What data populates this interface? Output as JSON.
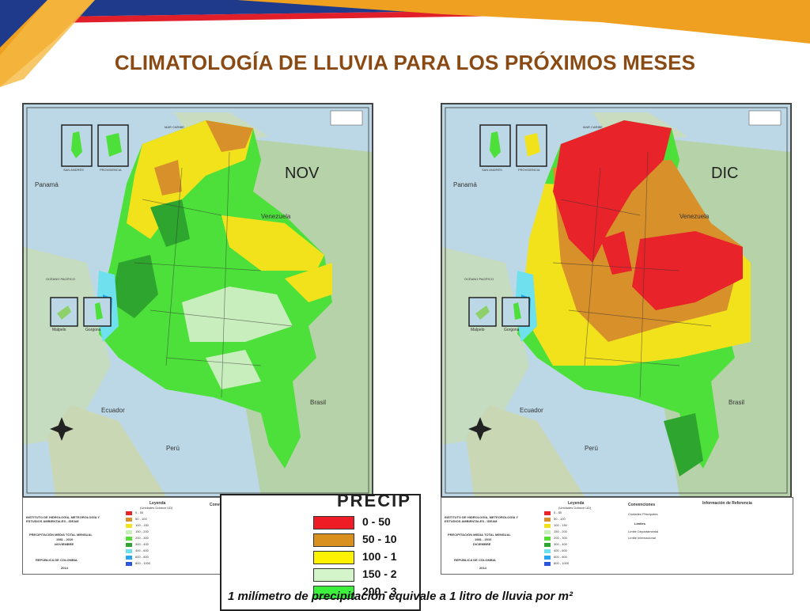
{
  "slide": {
    "title": "CLIMATOLOGÍA DE LLUVIA PARA LOS PRÓXIMOS MESES",
    "colors": {
      "title": "#8a4a14",
      "banner_blue": "#1f3a8a",
      "banner_orange": "#f0a020"
    }
  },
  "maps": [
    {
      "month": "NOV",
      "legend_title": "PRECIPITACIÓN MEDIA TOTAL MENSUAL",
      "period": "1981 - 2010",
      "month_name": "NOVIEMBRE",
      "year": "2014"
    },
    {
      "month": "DIC",
      "legend_title": "PRECIPITACIÓN MEDIA TOTAL MENSUAL",
      "period": "1981 - 2010",
      "month_name": "DICIEMBRE",
      "year": "2014"
    }
  ],
  "place_labels": {
    "venezuela": "Venezuela",
    "brasil": "Brasil",
    "peru": "Perú",
    "ecuador": "Ecuador",
    "panama": "Panamá",
    "san_andres": "SAN ANDRÉS",
    "providencia": "PROVIDENCIA",
    "malpelo": "Malpelo",
    "gorgona": "Gorgona",
    "mar_caribe": "MAR CARIBE",
    "oceano_pacifico": "OCÉANO PACÍFICO"
  },
  "small_legend": {
    "institute": "INSTITUTO DE HIDROLOGÍA, METEOROLOGÍA Y ESTUDIOS AMBIENTALES - IDEAM",
    "country": "REPÚBLICA DE COLOMBIA",
    "leyenda": "Leyenda",
    "leyenda_units": "(Unidades Dobson UD)",
    "convenciones": "Convenciones",
    "ciudades": "Ciudades Principales",
    "limites": "Límites",
    "limite_dep": "Límite Departamental",
    "limite_int": "Límite Internacional",
    "info_ref": "Información de Referencia",
    "ranges": [
      "0 - 50",
      "50 - 100",
      "100 - 150",
      "150 - 200",
      "200 - 300",
      "300 - 400",
      "400 - 600",
      "600 - 800",
      "800 - 1000"
    ],
    "range_colors": [
      "#e8232a",
      "#d8902a",
      "#f2e21c",
      "#c9eebd",
      "#55dd33",
      "#2ea52e",
      "#6fe0ee",
      "#2aa6ee",
      "#2a55dd"
    ]
  },
  "big_legend": {
    "heading": "PRECIP",
    "items": [
      {
        "label": "0 - 50",
        "color": "#ee1c24"
      },
      {
        "label": "50 - 10",
        "color": "#d9901f"
      },
      {
        "label": "100 - 1",
        "color": "#fff200"
      },
      {
        "label": "150 - 2",
        "color": "#d4f5c9"
      },
      {
        "label": "200 - 3",
        "color": "#3ef03e"
      }
    ]
  },
  "footnote": "1 milímetro de precipitación equivale a 1 litro de lluvia por m²"
}
